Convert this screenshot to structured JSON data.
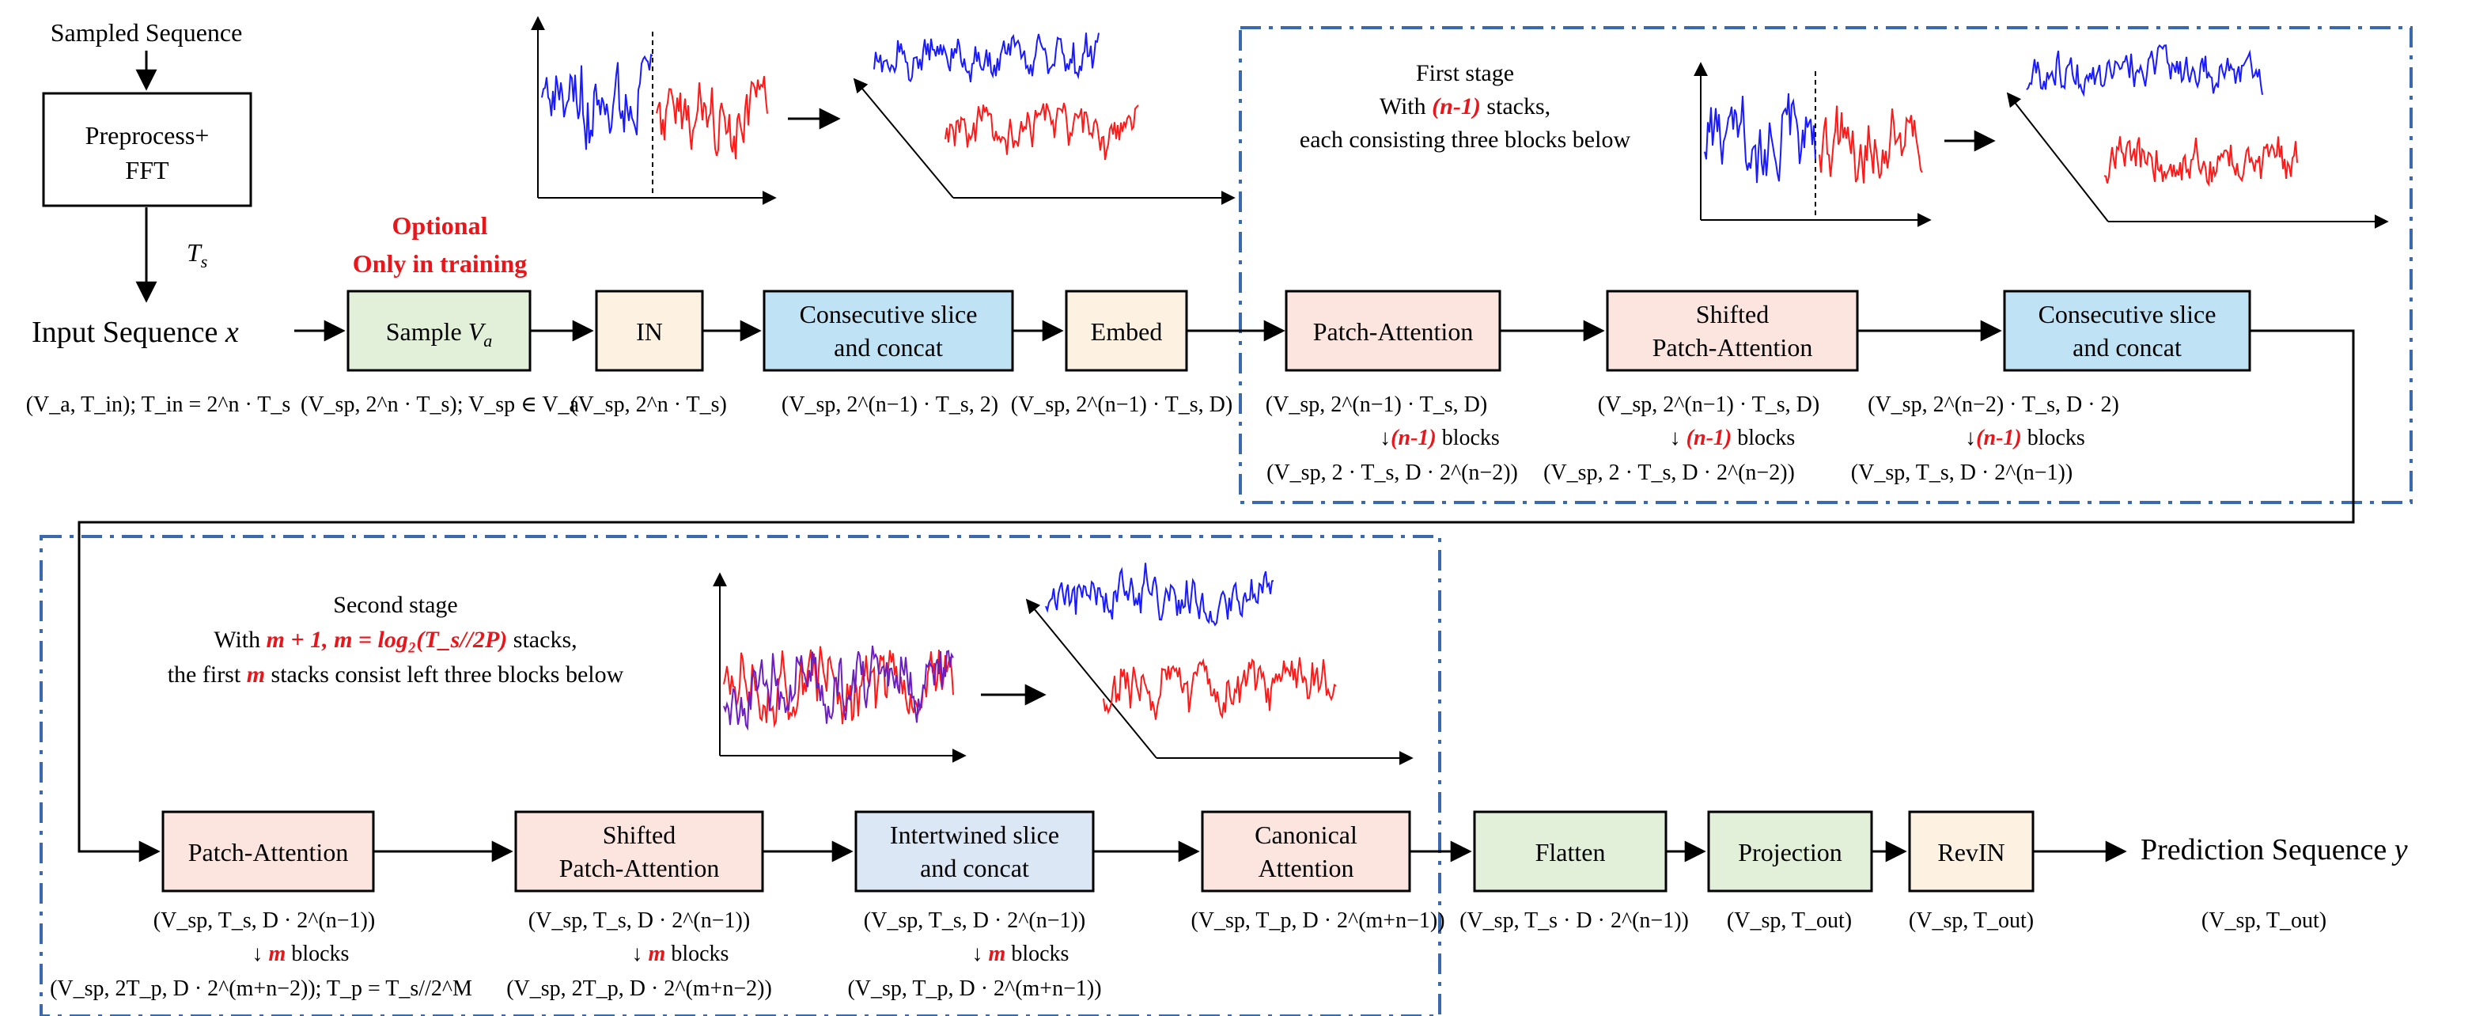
{
  "colors": {
    "sample_fill": "#e2f0d9",
    "in_fill": "#fdf2e1",
    "slice_fill": "#bfe3f4",
    "embed_fill": "#fdf2e1",
    "attn_fill": "#fbe5de",
    "intertwined_fill": "#dbe7f5",
    "flatten_fill": "#e2f0d9",
    "projection_fill": "#e2f0d9",
    "revin_fill": "#fdf2e1",
    "accent_red": "#e8161b",
    "stage_border": "#3a6aad",
    "series_blue": "#1a1aff",
    "series_red": "#ff1a1a"
  },
  "top": {
    "sampled_sequence": "Sampled Sequence",
    "preprocess_line1": "Preprocess+",
    "preprocess_line2": "FFT",
    "ts_label": "T_s",
    "input_label": "Input Sequence x",
    "input_shape": "(V_a, T_in);  T_in = 2^n · T_s",
    "optional_line1": "Optional",
    "optional_line2": "Only in training",
    "sample_box": "Sample V_a",
    "sample_shape": "(V_sp, 2^n · T_s); V_sp ∈ V_a",
    "in_box": "IN",
    "in_shape": "(V_sp, 2^n · T_s)",
    "slice_line1": "Consecutive slice",
    "slice_line2": "and concat",
    "slice_shape": "(V_sp, 2^(n−1) · T_s, 2)",
    "embed_box": "Embed",
    "embed_shape": "(V_sp, 2^(n−1) · T_s, D)"
  },
  "stage1": {
    "title_line1": "First stage",
    "title_line2_pre": "With ",
    "title_line2_red": "(n-1)",
    "title_line2_post": " stacks,",
    "title_line3": "each consisting three blocks below",
    "patch_attention": "Patch-Attention",
    "pa_shape_in": "(V_sp, 2^(n−1) · T_s, D)",
    "pa_blocks_red": "(n-1)",
    "pa_blocks_text": " blocks",
    "pa_shape_out": "(V_sp, 2 · T_s, D · 2^(n−2))",
    "shifted_line1": "Shifted",
    "shifted_line2": "Patch-Attention",
    "spa_shape_in": "(V_sp, 2^(n−1) · T_s, D)",
    "spa_blocks_red": "(n-1)",
    "spa_blocks_text": " blocks",
    "spa_shape_out": "(V_sp, 2 · T_s, D · 2^(n−2))",
    "slice_line1": "Consecutive slice",
    "slice_line2": "and concat",
    "cs_shape_in": "(V_sp, 2^(n−2) · T_s, D · 2)",
    "cs_blocks_red": "(n-1)",
    "cs_blocks_text": " blocks",
    "cs_shape_out": "(V_sp, T_s, D · 2^(n−1))"
  },
  "stage2": {
    "title_line1": "Second stage",
    "title_line2_pre": "With ",
    "title_line2_red": "m + 1, m = log₂(T_s//2P)",
    "title_line2_post": " stacks,",
    "title_line3_pre": "the first ",
    "title_line3_red": "m",
    "title_line3_post": " stacks consist left three blocks below",
    "patch_attention": "Patch-Attention",
    "pa_shape_in": "(V_sp, T_s, D · 2^(n−1))",
    "pa_blocks_red": "m",
    "pa_blocks_text": " blocks",
    "pa_shape_out": "(V_sp, 2T_p, D · 2^(m+n−2));  T_p = T_s//2^M",
    "shifted_line1": "Shifted",
    "shifted_line2": "Patch-Attention",
    "spa_shape_in": "(V_sp, T_s, D · 2^(n−1))",
    "spa_blocks_red": "m",
    "spa_blocks_text": " blocks",
    "spa_shape_out": "(V_sp, 2T_p, D · 2^(m+n−2))",
    "inter_line1": "Intertwined slice",
    "inter_line2": "and concat",
    "inter_shape_in": "(V_sp, T_s, D · 2^(n−1))",
    "inter_blocks_red": "m",
    "inter_blocks_text": " blocks",
    "inter_shape_out": "(V_sp, T_p, D · 2^(m+n−1))",
    "canonical_line1": "Canonical",
    "canonical_line2": "Attention",
    "canonical_shape": "(V_sp, T_p, D · 2^(m+n−1))"
  },
  "tail": {
    "flatten": "Flatten",
    "flatten_shape": "(V_sp, T_s · D · 2^(n−1))",
    "projection": "Projection",
    "projection_shape": "(V_sp, T_out)",
    "revin": "RevIN",
    "revin_shape": "(V_sp, T_out)",
    "prediction_label": "Prediction Sequence y",
    "prediction_shape": "(V_sp, T_out)"
  }
}
